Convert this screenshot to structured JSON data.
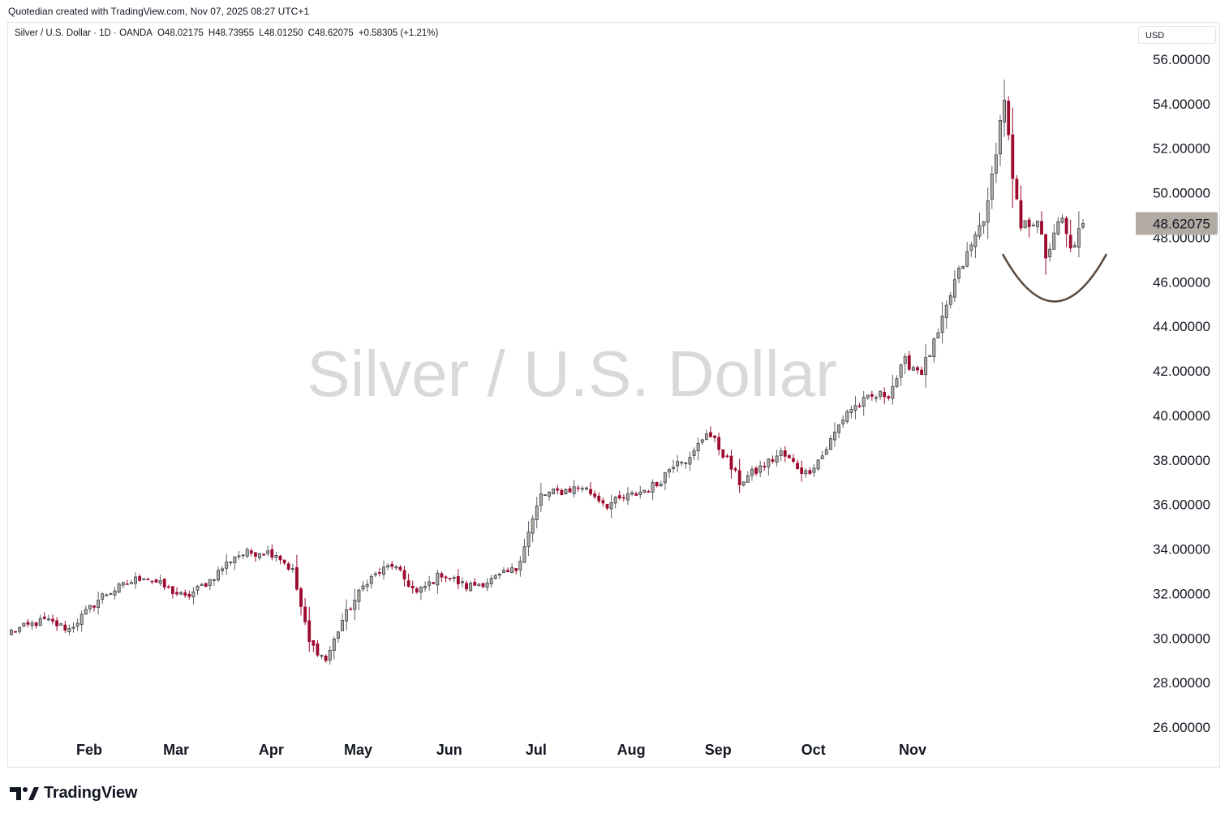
{
  "caption": "Quotedian created with TradingView.com, Nov 07, 2025 08:27 UTC+1",
  "legend": {
    "symbol": "Silver / U.S. Dollar · 1D · OANDA",
    "open": "O48.02175",
    "high": "H48.73955",
    "low": "L48.01250",
    "close": "C48.62075",
    "change": "+0.58305 (+1.21%)"
  },
  "currency": "USD",
  "brand": "TradingView",
  "colors": {
    "up": "#b2aba4",
    "down": "#9c0a2e",
    "wick": "#5d606b",
    "arc": "#5b4a3e",
    "last_price_bg": "#b2aba4"
  },
  "chart_data": {
    "type": "candlestick",
    "title": "Silver / U.S. Dollar",
    "ylim": [
      25.5,
      56.8
    ],
    "y_ticks": [
      "56.00000",
      "54.00000",
      "52.00000",
      "50.00000",
      "48.00000",
      "46.00000",
      "44.00000",
      "42.00000",
      "40.00000",
      "38.00000",
      "36.00000",
      "34.00000",
      "32.00000",
      "30.00000",
      "28.00000",
      "26.00000"
    ],
    "x_labels": [
      "Feb",
      "Mar",
      "Apr",
      "May",
      "Jun",
      "Jul",
      "Aug",
      "Sep",
      "Oct",
      "Nov"
    ],
    "last_price": "48.62075",
    "keypoints": [
      [
        0,
        30.3
      ],
      [
        8,
        30.8
      ],
      [
        14,
        30.4
      ],
      [
        22,
        31.9
      ],
      [
        32,
        32.8
      ],
      [
        42,
        31.8
      ],
      [
        48,
        32.6
      ],
      [
        54,
        33.7
      ],
      [
        60,
        33.9
      ],
      [
        64,
        33.8
      ],
      [
        68,
        33.0
      ],
      [
        72,
        29.8
      ],
      [
        76,
        29.0
      ],
      [
        80,
        30.8
      ],
      [
        86,
        32.6
      ],
      [
        92,
        33.3
      ],
      [
        98,
        32.0
      ],
      [
        104,
        32.9
      ],
      [
        110,
        32.3
      ],
      [
        116,
        32.6
      ],
      [
        122,
        33.1
      ],
      [
        128,
        36.4
      ],
      [
        133,
        36.6
      ],
      [
        138,
        36.8
      ],
      [
        144,
        36.0
      ],
      [
        150,
        36.4
      ],
      [
        156,
        36.9
      ],
      [
        161,
        38.1
      ],
      [
        164,
        38.0
      ],
      [
        168,
        39.3
      ],
      [
        172,
        38.3
      ],
      [
        176,
        37.0
      ],
      [
        180,
        37.5
      ],
      [
        186,
        38.3
      ],
      [
        192,
        37.4
      ],
      [
        196,
        38.2
      ],
      [
        202,
        40.2
      ],
      [
        208,
        40.8
      ],
      [
        212,
        41.0
      ],
      [
        216,
        42.4
      ],
      [
        220,
        42.0
      ],
      [
        224,
        43.6
      ],
      [
        228,
        46.0
      ],
      [
        232,
        47.6
      ],
      [
        236,
        49.4
      ],
      [
        238,
        52.0
      ],
      [
        240,
        54.3
      ],
      [
        242,
        50.5
      ],
      [
        244,
        48.4
      ],
      [
        248,
        48.9
      ],
      [
        250,
        46.9
      ],
      [
        252,
        48.3
      ],
      [
        254,
        48.7
      ],
      [
        256,
        47.4
      ],
      [
        259,
        48.6
      ]
    ],
    "annotations": [
      {
        "type": "arc",
        "description": "rounded bottom"
      }
    ]
  }
}
